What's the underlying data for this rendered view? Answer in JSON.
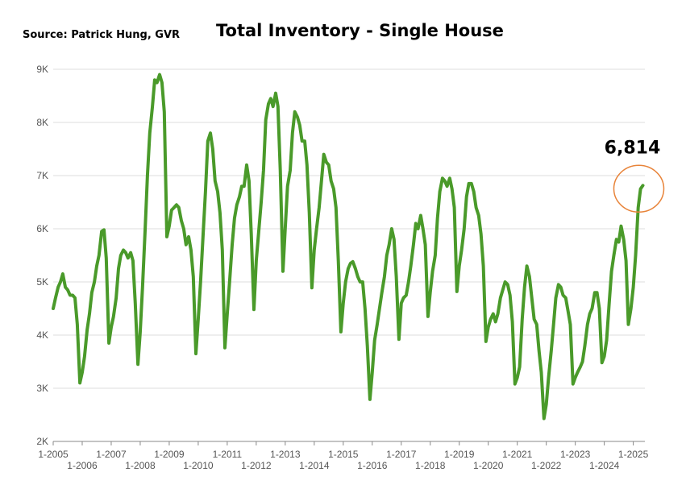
{
  "source": "Source:  Patrick Hung, GVR",
  "chart_data": {
    "type": "line",
    "title": "Total Inventory - Single House",
    "xlabel": "",
    "ylabel": "",
    "ylim": [
      2000,
      9000
    ],
    "xlim": [
      2005.0,
      2025.4
    ],
    "grid": true,
    "y_ticks": [
      {
        "value": 2000,
        "label": "2K"
      },
      {
        "value": 3000,
        "label": "3K"
      },
      {
        "value": 4000,
        "label": "4K"
      },
      {
        "value": 5000,
        "label": "5K"
      },
      {
        "value": 6000,
        "label": "6K"
      },
      {
        "value": 7000,
        "label": "7K"
      },
      {
        "value": 8000,
        "label": "8K"
      },
      {
        "value": 9000,
        "label": "9K"
      }
    ],
    "x_ticks": [
      {
        "value": 2005,
        "label": "1-2005",
        "row": 1
      },
      {
        "value": 2006,
        "label": "1-2006",
        "row": 2
      },
      {
        "value": 2007,
        "label": "1-2007",
        "row": 1
      },
      {
        "value": 2008,
        "label": "1-2008",
        "row": 2
      },
      {
        "value": 2009,
        "label": "1-2009",
        "row": 1
      },
      {
        "value": 2010,
        "label": "1-2010",
        "row": 2
      },
      {
        "value": 2011,
        "label": "1-2011",
        "row": 1
      },
      {
        "value": 2012,
        "label": "1-2012",
        "row": 2
      },
      {
        "value": 2013,
        "label": "1-2013",
        "row": 1
      },
      {
        "value": 2014,
        "label": "1-2014",
        "row": 2
      },
      {
        "value": 2015,
        "label": "1-2015",
        "row": 1
      },
      {
        "value": 2016,
        "label": "1-2016",
        "row": 2
      },
      {
        "value": 2017,
        "label": "1-2017",
        "row": 1
      },
      {
        "value": 2018,
        "label": "1-2018",
        "row": 2
      },
      {
        "value": 2019,
        "label": "1-2019",
        "row": 1
      },
      {
        "value": 2020,
        "label": "1-2020",
        "row": 2
      },
      {
        "value": 2021,
        "label": "1-2021",
        "row": 1
      },
      {
        "value": 2022,
        "label": "1-2022",
        "row": 2
      },
      {
        "value": 2023,
        "label": "1-2023",
        "row": 1
      },
      {
        "value": 2024,
        "label": "1-2024",
        "row": 2
      },
      {
        "value": 2025,
        "label": "1-2025",
        "row": 1
      }
    ],
    "series": [
      {
        "color": "#4a9a2a",
        "points": [
          [
            2005.0,
            4500
          ],
          [
            2005.08,
            4700
          ],
          [
            2005.17,
            4900
          ],
          [
            2005.25,
            5000
          ],
          [
            2005.33,
            5150
          ],
          [
            2005.42,
            4900
          ],
          [
            2005.5,
            4850
          ],
          [
            2005.58,
            4750
          ],
          [
            2005.67,
            4750
          ],
          [
            2005.75,
            4700
          ],
          [
            2005.83,
            4200
          ],
          [
            2005.92,
            3100
          ],
          [
            2006.0,
            3300
          ],
          [
            2006.08,
            3600
          ],
          [
            2006.17,
            4100
          ],
          [
            2006.25,
            4400
          ],
          [
            2006.33,
            4800
          ],
          [
            2006.42,
            5000
          ],
          [
            2006.5,
            5300
          ],
          [
            2006.58,
            5500
          ],
          [
            2006.67,
            5950
          ],
          [
            2006.75,
            5980
          ],
          [
            2006.83,
            5450
          ],
          [
            2006.92,
            3850
          ],
          [
            2007.0,
            4150
          ],
          [
            2007.08,
            4350
          ],
          [
            2007.17,
            4700
          ],
          [
            2007.25,
            5250
          ],
          [
            2007.33,
            5500
          ],
          [
            2007.42,
            5600
          ],
          [
            2007.5,
            5550
          ],
          [
            2007.58,
            5450
          ],
          [
            2007.67,
            5550
          ],
          [
            2007.75,
            5400
          ],
          [
            2007.83,
            4600
          ],
          [
            2007.92,
            3450
          ],
          [
            2008.0,
            4050
          ],
          [
            2008.08,
            4900
          ],
          [
            2008.17,
            6000
          ],
          [
            2008.25,
            7000
          ],
          [
            2008.33,
            7800
          ],
          [
            2008.42,
            8300
          ],
          [
            2008.5,
            8800
          ],
          [
            2008.58,
            8750
          ],
          [
            2008.67,
            8900
          ],
          [
            2008.75,
            8750
          ],
          [
            2008.83,
            8200
          ],
          [
            2008.92,
            5850
          ],
          [
            2009.0,
            6050
          ],
          [
            2009.08,
            6350
          ],
          [
            2009.17,
            6400
          ],
          [
            2009.25,
            6450
          ],
          [
            2009.33,
            6400
          ],
          [
            2009.42,
            6150
          ],
          [
            2009.5,
            6000
          ],
          [
            2009.58,
            5700
          ],
          [
            2009.67,
            5850
          ],
          [
            2009.75,
            5600
          ],
          [
            2009.83,
            5100
          ],
          [
            2009.92,
            3650
          ],
          [
            2010.0,
            4300
          ],
          [
            2010.08,
            5000
          ],
          [
            2010.17,
            5900
          ],
          [
            2010.25,
            6700
          ],
          [
            2010.33,
            7650
          ],
          [
            2010.42,
            7800
          ],
          [
            2010.5,
            7500
          ],
          [
            2010.58,
            6900
          ],
          [
            2010.67,
            6700
          ],
          [
            2010.75,
            6300
          ],
          [
            2010.83,
            5600
          ],
          [
            2010.92,
            3760
          ],
          [
            2011.0,
            4400
          ],
          [
            2011.08,
            5000
          ],
          [
            2011.17,
            5700
          ],
          [
            2011.25,
            6200
          ],
          [
            2011.33,
            6450
          ],
          [
            2011.42,
            6600
          ],
          [
            2011.5,
            6800
          ],
          [
            2011.58,
            6800
          ],
          [
            2011.67,
            7200
          ],
          [
            2011.75,
            6900
          ],
          [
            2011.83,
            5900
          ],
          [
            2011.92,
            4480
          ],
          [
            2012.0,
            5400
          ],
          [
            2012.08,
            5900
          ],
          [
            2012.17,
            6500
          ],
          [
            2012.25,
            7100
          ],
          [
            2012.33,
            8050
          ],
          [
            2012.42,
            8350
          ],
          [
            2012.5,
            8450
          ],
          [
            2012.58,
            8300
          ],
          [
            2012.67,
            8550
          ],
          [
            2012.75,
            8300
          ],
          [
            2012.83,
            7100
          ],
          [
            2012.92,
            5200
          ],
          [
            2013.0,
            6000
          ],
          [
            2013.08,
            6800
          ],
          [
            2013.17,
            7100
          ],
          [
            2013.25,
            7800
          ],
          [
            2013.33,
            8200
          ],
          [
            2013.42,
            8100
          ],
          [
            2013.5,
            7950
          ],
          [
            2013.58,
            7650
          ],
          [
            2013.67,
            7650
          ],
          [
            2013.75,
            7200
          ],
          [
            2013.83,
            6300
          ],
          [
            2013.92,
            4890
          ],
          [
            2014.0,
            5600
          ],
          [
            2014.08,
            6000
          ],
          [
            2014.17,
            6400
          ],
          [
            2014.25,
            6900
          ],
          [
            2014.33,
            7400
          ],
          [
            2014.42,
            7250
          ],
          [
            2014.5,
            7200
          ],
          [
            2014.58,
            6900
          ],
          [
            2014.67,
            6750
          ],
          [
            2014.75,
            6400
          ],
          [
            2014.83,
            5400
          ],
          [
            2014.92,
            4060
          ],
          [
            2015.0,
            4600
          ],
          [
            2015.08,
            5000
          ],
          [
            2015.17,
            5250
          ],
          [
            2015.25,
            5350
          ],
          [
            2015.33,
            5380
          ],
          [
            2015.42,
            5250
          ],
          [
            2015.5,
            5100
          ],
          [
            2015.58,
            5000
          ],
          [
            2015.67,
            5000
          ],
          [
            2015.75,
            4500
          ],
          [
            2015.83,
            3800
          ],
          [
            2015.92,
            2790
          ],
          [
            2016.0,
            3300
          ],
          [
            2016.08,
            3900
          ],
          [
            2016.17,
            4200
          ],
          [
            2016.25,
            4500
          ],
          [
            2016.33,
            4800
          ],
          [
            2016.42,
            5100
          ],
          [
            2016.5,
            5500
          ],
          [
            2016.58,
            5700
          ],
          [
            2016.67,
            6000
          ],
          [
            2016.75,
            5800
          ],
          [
            2016.83,
            5100
          ],
          [
            2016.92,
            3920
          ],
          [
            2017.0,
            4600
          ],
          [
            2017.08,
            4700
          ],
          [
            2017.17,
            4750
          ],
          [
            2017.25,
            5000
          ],
          [
            2017.33,
            5300
          ],
          [
            2017.42,
            5700
          ],
          [
            2017.5,
            6100
          ],
          [
            2017.58,
            6000
          ],
          [
            2017.67,
            6250
          ],
          [
            2017.75,
            6000
          ],
          [
            2017.83,
            5700
          ],
          [
            2017.92,
            4350
          ],
          [
            2018.0,
            4800
          ],
          [
            2018.08,
            5200
          ],
          [
            2018.17,
            5500
          ],
          [
            2018.25,
            6200
          ],
          [
            2018.33,
            6700
          ],
          [
            2018.42,
            6950
          ],
          [
            2018.5,
            6900
          ],
          [
            2018.58,
            6800
          ],
          [
            2018.67,
            6950
          ],
          [
            2018.75,
            6750
          ],
          [
            2018.83,
            6400
          ],
          [
            2018.92,
            4820
          ],
          [
            2019.0,
            5300
          ],
          [
            2019.08,
            5600
          ],
          [
            2019.17,
            6000
          ],
          [
            2019.25,
            6600
          ],
          [
            2019.33,
            6850
          ],
          [
            2019.42,
            6850
          ],
          [
            2019.5,
            6700
          ],
          [
            2019.58,
            6400
          ],
          [
            2019.67,
            6250
          ],
          [
            2019.75,
            5900
          ],
          [
            2019.83,
            5300
          ],
          [
            2019.92,
            3880
          ],
          [
            2020.0,
            4150
          ],
          [
            2020.08,
            4300
          ],
          [
            2020.17,
            4400
          ],
          [
            2020.25,
            4250
          ],
          [
            2020.33,
            4400
          ],
          [
            2020.42,
            4700
          ],
          [
            2020.5,
            4850
          ],
          [
            2020.58,
            5000
          ],
          [
            2020.67,
            4950
          ],
          [
            2020.75,
            4750
          ],
          [
            2020.83,
            4250
          ],
          [
            2020.92,
            3080
          ],
          [
            2021.0,
            3200
          ],
          [
            2021.08,
            3400
          ],
          [
            2021.17,
            4300
          ],
          [
            2021.25,
            4900
          ],
          [
            2021.33,
            5300
          ],
          [
            2021.42,
            5100
          ],
          [
            2021.5,
            4700
          ],
          [
            2021.58,
            4300
          ],
          [
            2021.67,
            4200
          ],
          [
            2021.75,
            3700
          ],
          [
            2021.83,
            3300
          ],
          [
            2021.92,
            2430
          ],
          [
            2022.0,
            2700
          ],
          [
            2022.08,
            3200
          ],
          [
            2022.17,
            3700
          ],
          [
            2022.25,
            4200
          ],
          [
            2022.33,
            4700
          ],
          [
            2022.42,
            4950
          ],
          [
            2022.5,
            4900
          ],
          [
            2022.58,
            4750
          ],
          [
            2022.67,
            4700
          ],
          [
            2022.75,
            4450
          ],
          [
            2022.83,
            4200
          ],
          [
            2022.92,
            3080
          ],
          [
            2023.0,
            3200
          ],
          [
            2023.08,
            3300
          ],
          [
            2023.17,
            3400
          ],
          [
            2023.25,
            3500
          ],
          [
            2023.33,
            3800
          ],
          [
            2023.42,
            4200
          ],
          [
            2023.5,
            4400
          ],
          [
            2023.58,
            4500
          ],
          [
            2023.67,
            4800
          ],
          [
            2023.75,
            4800
          ],
          [
            2023.83,
            4500
          ],
          [
            2023.92,
            3480
          ],
          [
            2024.0,
            3600
          ],
          [
            2024.08,
            3900
          ],
          [
            2024.17,
            4600
          ],
          [
            2024.25,
            5200
          ],
          [
            2024.33,
            5500
          ],
          [
            2024.42,
            5800
          ],
          [
            2024.5,
            5750
          ],
          [
            2024.58,
            6050
          ],
          [
            2024.67,
            5800
          ],
          [
            2024.75,
            5400
          ],
          [
            2024.83,
            4200
          ],
          [
            2024.92,
            4500
          ],
          [
            2025.0,
            4900
          ],
          [
            2025.08,
            5500
          ],
          [
            2025.17,
            6400
          ],
          [
            2025.25,
            6750
          ],
          [
            2025.33,
            6814
          ]
        ]
      }
    ],
    "annotation": {
      "text": "6,814",
      "x": 2025.33,
      "y": 6814,
      "circle_color": "#e8843a"
    }
  }
}
